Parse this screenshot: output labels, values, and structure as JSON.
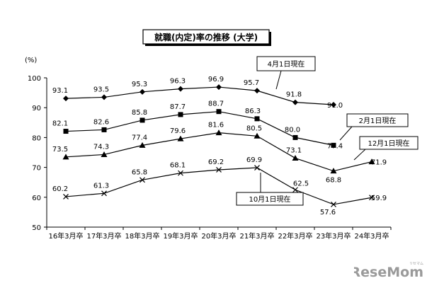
{
  "chart_data": {
    "type": "line",
    "title": "就職(内定)率の推移 (大学)",
    "ylabel": "(%)",
    "ylim": [
      50,
      100
    ],
    "yticks": [
      50,
      60,
      70,
      80,
      90,
      100
    ],
    "grid": false,
    "categories": [
      "16年3月卒",
      "17年3月卒",
      "18年3月卒",
      "19年3月卒",
      "20年3月卒",
      "21年3月卒",
      "22年3月卒",
      "23年3月卒",
      "24年3月卒"
    ],
    "series": [
      {
        "name": "4月1日現在",
        "marker": "diamond",
        "values": [
          93.1,
          93.5,
          95.3,
          96.3,
          96.9,
          95.7,
          91.8,
          91.0,
          null
        ]
      },
      {
        "name": "2月1日現在",
        "marker": "square",
        "values": [
          82.1,
          82.6,
          85.8,
          87.7,
          88.7,
          86.3,
          80.0,
          77.4,
          null
        ]
      },
      {
        "name": "12月1日現在",
        "marker": "triangle",
        "values": [
          73.5,
          74.3,
          77.4,
          79.6,
          81.6,
          80.5,
          73.1,
          68.8,
          71.9
        ]
      },
      {
        "name": "10月1日現在",
        "marker": "x",
        "values": [
          60.2,
          61.3,
          65.8,
          68.1,
          69.2,
          69.9,
          62.5,
          57.6,
          59.9
        ]
      }
    ],
    "value_labels": [
      [
        "93.1",
        "93.5",
        "95.3",
        "96.3",
        "96.9",
        "95.7",
        "91.8",
        "91.0",
        ""
      ],
      [
        "82.1",
        "82.6",
        "85.8",
        "87.7",
        "88.7",
        "86.3",
        "80.0",
        "77.4",
        ""
      ],
      [
        "73.5",
        "74.3",
        "77.4",
        "79.6",
        "81.6",
        "80.5",
        "73.1",
        "68.8",
        "71.9"
      ],
      [
        "60.2",
        "61.3",
        "65.8",
        "68.1",
        "69.2",
        "69.9",
        "62.5",
        "57.6",
        "59.9"
      ]
    ]
  },
  "watermark": {
    "text": "ReseMom",
    "ruby": "リセマム",
    "color": "#9a9a9a"
  }
}
